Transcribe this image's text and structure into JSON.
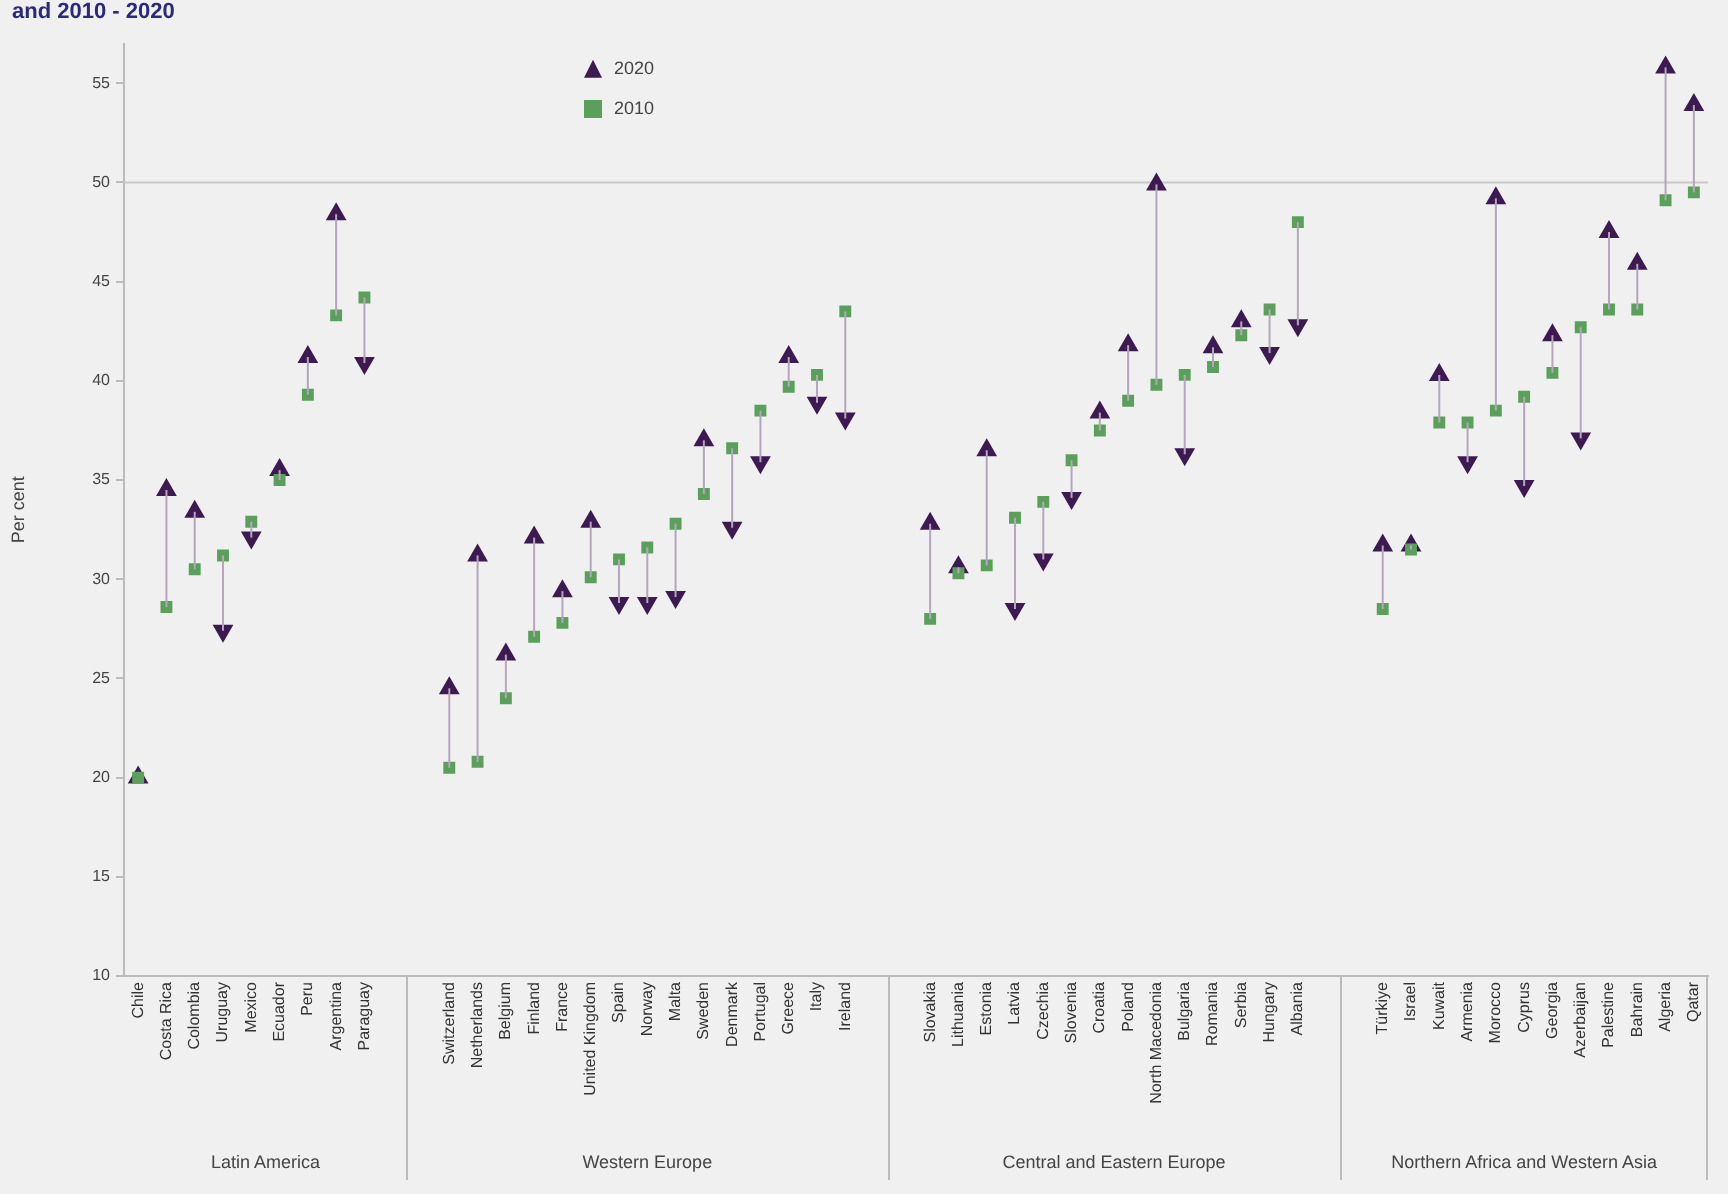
{
  "chart_data": {
    "type": "scatter",
    "title": "and 2010 - 2020",
    "ylabel": "Per cent",
    "categories": [
      "Chile",
      "Costa Rica",
      "Colombia",
      "Uruguay",
      "Mexico",
      "Ecuador",
      "Peru",
      "Argentina",
      "Paraguay",
      null,
      null,
      "Switzerland",
      "Netherlands",
      "Belgium",
      "Finland",
      "France",
      "United Kingdom",
      "Spain",
      "Norway",
      "Malta",
      "Sweden",
      "Denmark",
      "Portugal",
      "Greece",
      "Italy",
      "Ireland",
      null,
      null,
      "Slovakia",
      "Lithuania",
      "Estonia",
      "Latvia",
      "Czechia",
      "Slovenia",
      "Croatia",
      "Poland",
      "North Macedonia",
      "Bulgaria",
      "Romania",
      "Serbia",
      "Hungary",
      "Albania",
      null,
      null,
      "Türkiye",
      "Israel",
      "Kuwait",
      "Armenia",
      "Morocco",
      "Cyprus",
      "Georgia",
      "Azerbaijan",
      "Palestine",
      "Bahrain",
      "Algeria",
      "Qatar"
    ],
    "annotations": [
      "Latin America",
      "Western Europe",
      "Central and Eastern Europe",
      "Northern Africa and Western Asia"
    ],
    "ylim": [
      10,
      57
    ],
    "yticks": [
      10,
      15,
      20,
      25,
      30,
      35,
      40,
      45,
      50,
      55
    ],
    "legend": "top left",
    "ref_lines": [
      {
        "axis": "y",
        "value": 50,
        "color": "#c8c8c8"
      }
    ],
    "series": [
      {
        "name": "2020",
        "color": "#3d1a52",
        "marker": "triangle",
        "values": [
          20,
          34.5,
          33.4,
          27.4,
          32.1,
          35.5,
          41.2,
          48.4,
          40.9,
          null,
          null,
          24.5,
          31.2,
          26.2,
          32.1,
          29.4,
          32.9,
          28.8,
          28.8,
          29.1,
          37,
          32.6,
          35.9,
          41.2,
          38.9,
          38.1,
          null,
          null,
          32.8,
          30.6,
          36.5,
          28.5,
          31,
          34.1,
          38.4,
          41.8,
          49.9,
          36.3,
          41.7,
          43,
          41.4,
          42.8,
          null,
          null,
          31.7,
          31.7,
          40.3,
          35.9,
          49.2,
          34.7,
          42.3,
          37.1,
          47.5,
          45.9,
          55.8,
          53.9
        ]
      },
      {
        "name": "2010",
        "color": "#5aa05a",
        "marker": "square",
        "values": [
          20,
          28.6,
          30.5,
          31.2,
          32.9,
          35,
          39.3,
          43.3,
          44.2,
          null,
          null,
          20.5,
          20.8,
          24,
          27.1,
          27.8,
          30.1,
          31,
          31.6,
          32.8,
          34.3,
          36.6,
          38.5,
          39.7,
          40.3,
          43.5,
          null,
          null,
          28,
          30.3,
          30.7,
          33.1,
          33.9,
          36,
          37.5,
          39,
          39.8,
          40.3,
          40.7,
          42.3,
          43.6,
          48,
          null,
          null,
          28.5,
          31.5,
          37.9,
          37.9,
          38.5,
          39.2,
          40.4,
          42.7,
          43.6,
          43.6,
          49.1,
          49.5
        ]
      }
    ]
  }
}
